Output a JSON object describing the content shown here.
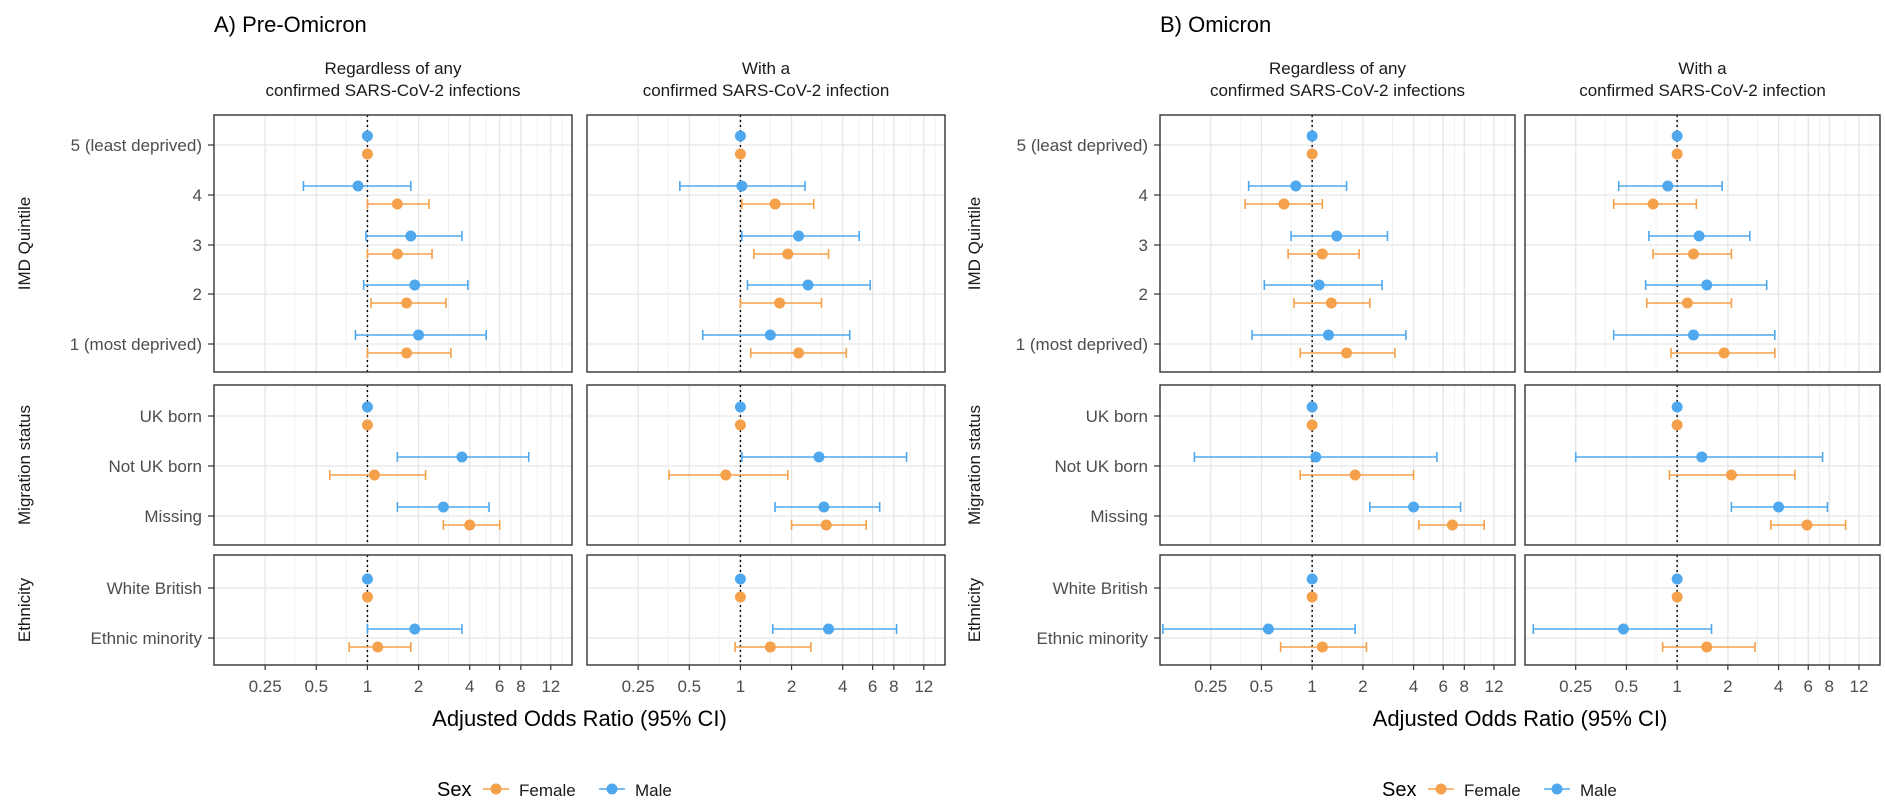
{
  "sections": [
    {
      "id": "A",
      "title": "A) Pre-Omicron"
    },
    {
      "id": "B",
      "title": "B) Omicron"
    }
  ],
  "columns": [
    "Regardless of any\nconfirmed SARS-CoV-2 infections",
    "With a\nconfirmed SARS-CoV-2 infection"
  ],
  "row_groups": [
    {
      "name": "IMD Quintile",
      "categories": [
        "5 (least deprived)",
        "4",
        "3",
        "2",
        "1 (most deprived)"
      ]
    },
    {
      "name": "Migration status",
      "categories": [
        "UK born",
        "Not UK born",
        "Missing"
      ]
    },
    {
      "name": "Ethnicity",
      "categories": [
        "White British",
        "Ethnic minority"
      ]
    }
  ],
  "x_axis": {
    "title": "Adjusted Odds Ratio (95% CI)",
    "ticks": [
      0.25,
      0.5,
      1,
      2,
      4,
      6,
      8,
      12
    ],
    "tick_labels": [
      "0.25",
      "0.5",
      "1",
      "2",
      "4",
      "6",
      "8",
      "12"
    ],
    "scale": "log",
    "range": [
      0.125,
      16
    ]
  },
  "legend": {
    "title": "Sex",
    "items": [
      {
        "name": "Female",
        "color": "#F5A04A"
      },
      {
        "name": "Male",
        "color": "#4FA8EE"
      }
    ]
  },
  "colors": {
    "female": "#F5A04A",
    "male": "#4FA8EE"
  },
  "chart_data": {
    "type": "forest",
    "series": [
      "Male",
      "Female"
    ],
    "panels": [
      {
        "section": "A",
        "column": 0,
        "group": "IMD Quintile",
        "estimates": [
          {
            "category": "5 (least deprived)",
            "male": [
              1,
              1,
              1
            ],
            "female": [
              1,
              1,
              1
            ]
          },
          {
            "category": "4",
            "male": [
              0.88,
              0.42,
              1.8
            ],
            "female": [
              1.5,
              1.0,
              2.3
            ]
          },
          {
            "category": "3",
            "male": [
              1.8,
              0.98,
              3.6
            ],
            "female": [
              1.5,
              1.0,
              2.4
            ]
          },
          {
            "category": "2",
            "male": [
              1.9,
              0.95,
              3.9
            ],
            "female": [
              1.7,
              1.05,
              2.9
            ]
          },
          {
            "category": "1 (most deprived)",
            "male": [
              2.0,
              0.85,
              5.0
            ],
            "female": [
              1.7,
              1.0,
              3.1
            ]
          }
        ]
      },
      {
        "section": "A",
        "column": 1,
        "group": "IMD Quintile",
        "estimates": [
          {
            "category": "5 (least deprived)",
            "male": [
              1,
              1,
              1
            ],
            "female": [
              1,
              1,
              1
            ]
          },
          {
            "category": "4",
            "male": [
              1.02,
              0.44,
              2.4
            ],
            "female": [
              1.6,
              1.02,
              2.7
            ]
          },
          {
            "category": "3",
            "male": [
              2.2,
              1.02,
              5.0
            ],
            "female": [
              1.9,
              1.2,
              3.3
            ]
          },
          {
            "category": "2",
            "male": [
              2.5,
              1.1,
              5.8
            ],
            "female": [
              1.7,
              1.0,
              3.0
            ]
          },
          {
            "category": "1 (most deprived)",
            "male": [
              1.5,
              0.6,
              4.4
            ],
            "female": [
              2.2,
              1.15,
              4.2
            ]
          }
        ]
      },
      {
        "section": "A",
        "column": 0,
        "group": "Migration status",
        "estimates": [
          {
            "category": "UK born",
            "male": [
              1,
              1,
              1
            ],
            "female": [
              1,
              1,
              1
            ]
          },
          {
            "category": "Not UK born",
            "male": [
              3.6,
              1.5,
              8.9
            ],
            "female": [
              1.1,
              0.6,
              2.2
            ]
          },
          {
            "category": "Missing",
            "male": [
              2.8,
              1.5,
              5.2
            ],
            "female": [
              4.0,
              2.8,
              6.0
            ]
          }
        ]
      },
      {
        "section": "A",
        "column": 1,
        "group": "Migration status",
        "estimates": [
          {
            "category": "UK born",
            "male": [
              1,
              1,
              1
            ],
            "female": [
              1,
              1,
              1
            ]
          },
          {
            "category": "Not UK born",
            "male": [
              2.9,
              1.02,
              9.5
            ],
            "female": [
              0.82,
              0.38,
              1.9
            ]
          },
          {
            "category": "Missing",
            "male": [
              3.1,
              1.6,
              6.6
            ],
            "female": [
              3.2,
              2.0,
              5.5
            ]
          }
        ]
      },
      {
        "section": "A",
        "column": 0,
        "group": "Ethnicity",
        "estimates": [
          {
            "category": "White British",
            "male": [
              1,
              1,
              1
            ],
            "female": [
              1,
              1,
              1
            ]
          },
          {
            "category": "Ethnic minority",
            "male": [
              1.9,
              1.0,
              3.6
            ],
            "female": [
              1.15,
              0.78,
              1.8
            ]
          }
        ]
      },
      {
        "section": "A",
        "column": 1,
        "group": "Ethnicity",
        "estimates": [
          {
            "category": "White British",
            "male": [
              1,
              1,
              1
            ],
            "female": [
              1,
              1,
              1
            ]
          },
          {
            "category": "Ethnic minority",
            "male": [
              3.3,
              1.55,
              8.3
            ],
            "female": [
              1.5,
              0.93,
              2.6
            ]
          }
        ]
      },
      {
        "section": "B",
        "column": 0,
        "group": "IMD Quintile",
        "estimates": [
          {
            "category": "5 (least deprived)",
            "male": [
              1,
              1,
              1
            ],
            "female": [
              1,
              1,
              1
            ]
          },
          {
            "category": "4",
            "male": [
              0.8,
              0.42,
              1.6
            ],
            "female": [
              0.68,
              0.4,
              1.15
            ]
          },
          {
            "category": "3",
            "male": [
              1.4,
              0.75,
              2.8
            ],
            "female": [
              1.15,
              0.72,
              1.9
            ]
          },
          {
            "category": "2",
            "male": [
              1.1,
              0.52,
              2.6
            ],
            "female": [
              1.3,
              0.78,
              2.2
            ]
          },
          {
            "category": "1 (most deprived)",
            "male": [
              1.25,
              0.44,
              3.6
            ],
            "female": [
              1.6,
              0.85,
              3.1
            ]
          }
        ]
      },
      {
        "section": "B",
        "column": 1,
        "group": "IMD Quintile",
        "estimates": [
          {
            "category": "5 (least deprived)",
            "male": [
              1,
              1,
              1
            ],
            "female": [
              1,
              1,
              1
            ]
          },
          {
            "category": "4",
            "male": [
              0.88,
              0.45,
              1.85
            ],
            "female": [
              0.72,
              0.42,
              1.3
            ]
          },
          {
            "category": "3",
            "male": [
              1.35,
              0.68,
              2.7
            ],
            "female": [
              1.25,
              0.72,
              2.1
            ]
          },
          {
            "category": "2",
            "male": [
              1.5,
              0.65,
              3.4
            ],
            "female": [
              1.15,
              0.66,
              2.1
            ]
          },
          {
            "category": "1 (most deprived)",
            "male": [
              1.25,
              0.42,
              3.8
            ],
            "female": [
              1.9,
              0.92,
              3.8
            ]
          }
        ]
      },
      {
        "section": "B",
        "column": 0,
        "group": "Migration status",
        "estimates": [
          {
            "category": "UK born",
            "male": [
              1,
              1,
              1
            ],
            "female": [
              1,
              1,
              1
            ]
          },
          {
            "category": "Not UK born",
            "male": [
              1.05,
              0.2,
              5.5
            ],
            "female": [
              1.8,
              0.85,
              4.0
            ]
          },
          {
            "category": "Missing",
            "male": [
              4.0,
              2.2,
              7.6
            ],
            "female": [
              6.8,
              4.3,
              10.5
            ]
          }
        ]
      },
      {
        "section": "B",
        "column": 1,
        "group": "Migration status",
        "estimates": [
          {
            "category": "UK born",
            "male": [
              1,
              1,
              1
            ],
            "female": [
              1,
              1,
              1
            ]
          },
          {
            "category": "Not UK born",
            "male": [
              1.4,
              0.25,
              7.3
            ],
            "female": [
              2.1,
              0.9,
              5.0
            ]
          },
          {
            "category": "Missing",
            "male": [
              4.0,
              2.1,
              7.8
            ],
            "female": [
              5.9,
              3.6,
              10.0
            ]
          }
        ]
      },
      {
        "section": "B",
        "column": 0,
        "group": "Ethnicity",
        "estimates": [
          {
            "category": "White British",
            "male": [
              1,
              1,
              1
            ],
            "female": [
              1,
              1,
              1
            ]
          },
          {
            "category": "Ethnic minority",
            "male": [
              0.55,
              0.13,
              1.8
            ],
            "female": [
              1.15,
              0.65,
              2.1
            ]
          }
        ]
      },
      {
        "section": "B",
        "column": 1,
        "group": "Ethnicity",
        "estimates": [
          {
            "category": "White British",
            "male": [
              1,
              1,
              1
            ],
            "female": [
              1,
              1,
              1
            ]
          },
          {
            "category": "Ethnic minority",
            "male": [
              0.48,
              0.14,
              1.6
            ],
            "female": [
              1.5,
              0.82,
              2.9
            ]
          }
        ]
      }
    ]
  }
}
